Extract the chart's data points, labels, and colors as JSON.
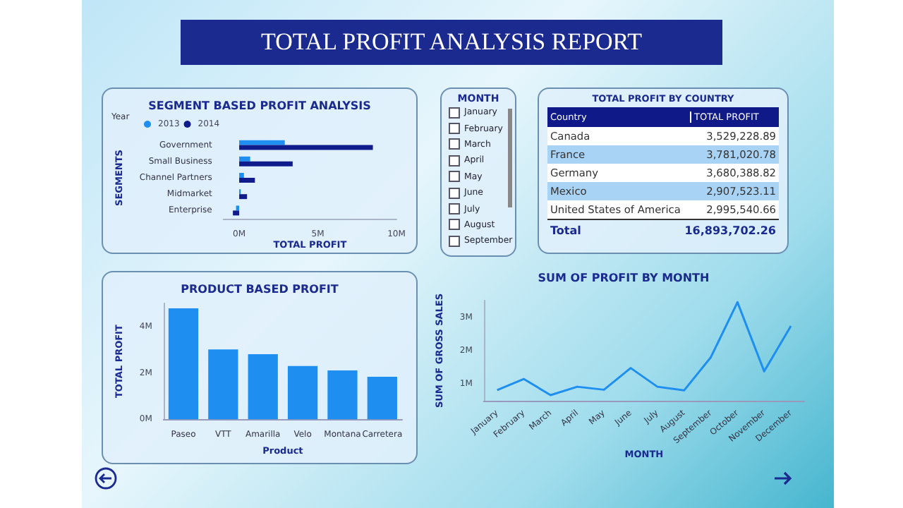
{
  "chart_data": [
    {
      "type": "other",
      "title": "TOTAL PROFIT ANALYSIS REPORT"
    },
    {
      "type": "bar",
      "title": "SEGMENT BASED PROFIT ANALYSIS",
      "orientation": "horizontal",
      "legend_title": "Year",
      "legend": "top left",
      "xlabel": "TOTAL PROFIT",
      "ylabel": "SEGMENTS",
      "categories": [
        "Government",
        "Small Business",
        "Channel Partners",
        "Midmarket",
        "Enterprise"
      ],
      "series": [
        {
          "name": "2013",
          "color": "#1e8ff0",
          "values": [
            2.9,
            0.7,
            0.3,
            0.1,
            -0.2
          ]
        },
        {
          "name": "2014",
          "color": "#111c8c",
          "values": [
            8.5,
            3.4,
            1.0,
            0.5,
            -0.4
          ]
        }
      ],
      "xlim": [
        -1,
        10
      ],
      "xticks": [
        {
          "value": 0,
          "label": "0M"
        },
        {
          "value": 5,
          "label": "5M"
        },
        {
          "value": 10,
          "label": "10M"
        }
      ],
      "grid": false
    },
    {
      "type": "other",
      "title": "MONTH",
      "categories": [
        "January",
        "February",
        "March",
        "April",
        "May",
        "June",
        "July",
        "August",
        "September"
      ]
    },
    {
      "type": "other",
      "title": "TOTAL PROFIT BY COUNTRY",
      "categories": [
        "Canada",
        "France",
        "Germany",
        "Mexico",
        "United States of America"
      ],
      "values": [
        3529228.89,
        3781020.78,
        3680388.82,
        2907523.11,
        2995540.66
      ],
      "value_labels": [
        "3,529,228.89",
        "3,781,020.78",
        "3,680,388.82",
        "2,907,523.11",
        "2,995,540.66"
      ],
      "annotations": [
        "Country",
        "TOTAL PROFIT",
        "Total"
      ],
      "totals": [
        "16,893,702.26"
      ]
    },
    {
      "type": "bar",
      "title": "PRODUCT BASED PROFIT",
      "xlabel": "Product",
      "ylabel": "TOTAL PROFIT",
      "categories": [
        "Paseo",
        "VTT",
        "Amarilla",
        "Velo",
        "Montana",
        "Carretera"
      ],
      "values": [
        4.79,
        3.01,
        2.81,
        2.3,
        2.11,
        1.83
      ],
      "color": "#1e8ff0",
      "ylim": [
        0,
        5
      ],
      "yticks": [
        {
          "value": 0,
          "label": "0M"
        },
        {
          "value": 2,
          "label": "2M"
        },
        {
          "value": 4,
          "label": "4M"
        }
      ],
      "grid": false
    },
    {
      "type": "line",
      "title": "SUM OF PROFIT BY MONTH",
      "xlabel": "MONTH",
      "ylabel": "SUM OF GROSS SALES",
      "categories": [
        "January",
        "February",
        "March",
        "April",
        "May",
        "June",
        "July",
        "August",
        "September",
        "October",
        "November",
        "December"
      ],
      "values": [
        0.82,
        1.15,
        0.67,
        0.92,
        0.83,
        1.48,
        0.92,
        0.81,
        1.8,
        3.45,
        1.38,
        2.74
      ],
      "color": "#1e8ff0",
      "marker": "none",
      "ylim": [
        0.5,
        3.5
      ],
      "yticks": [
        {
          "value": 1,
          "label": "1M"
        },
        {
          "value": 2,
          "label": "2M"
        },
        {
          "value": 3,
          "label": "3M"
        }
      ],
      "grid": false
    }
  ]
}
